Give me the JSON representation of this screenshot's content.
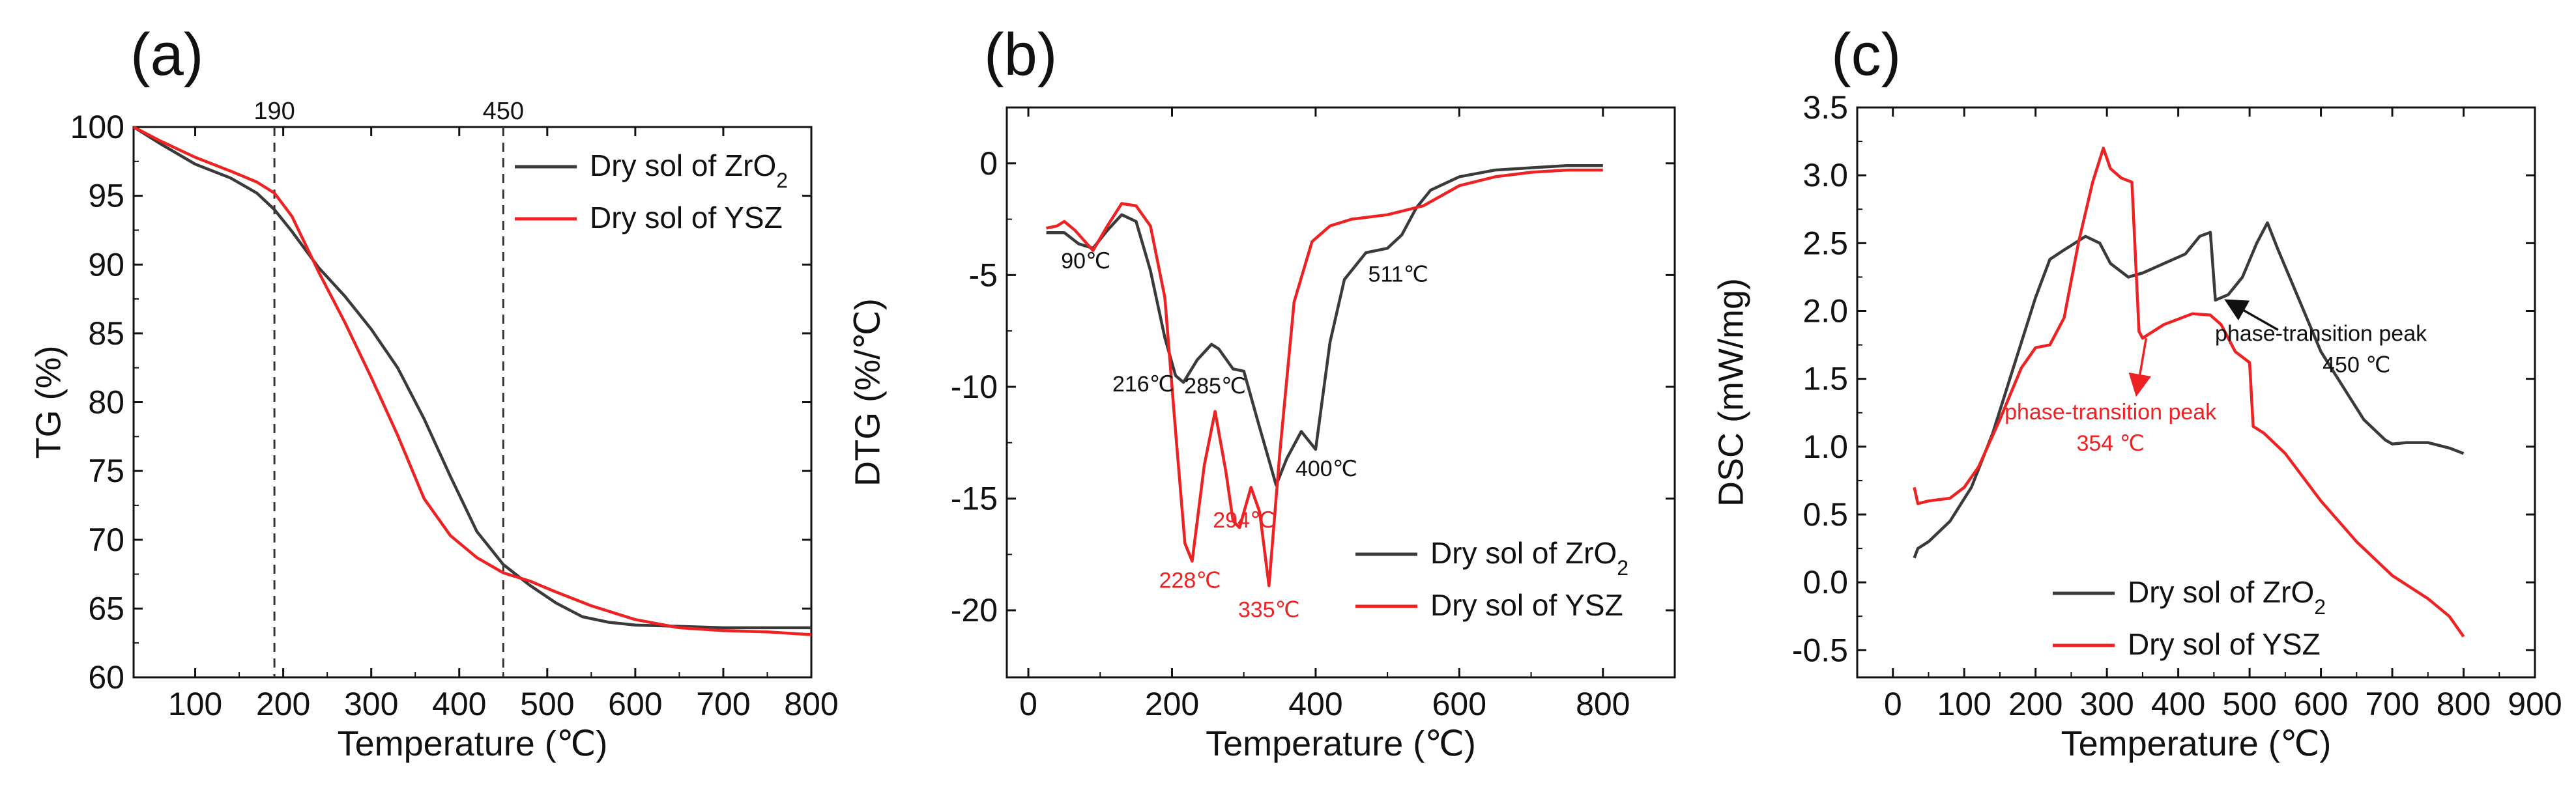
{
  "colors": {
    "zro2": "#3a3a3a",
    "ysz": "#ee2222",
    "axis": "#111111",
    "annot_black": "#111111",
    "annot_red": "#ee2222"
  },
  "chart_data": [
    {
      "type": "line",
      "panel": "(a)",
      "xlabel": "Temperature (℃)",
      "ylabel": "TG (%)",
      "xlim": [
        30,
        800
      ],
      "ylim": [
        60,
        100
      ],
      "xticks": [
        100,
        200,
        300,
        400,
        500,
        600,
        700,
        800
      ],
      "yticks": [
        60,
        65,
        70,
        75,
        80,
        85,
        90,
        95,
        100
      ],
      "legend": [
        "Dry sol of ZrO₂",
        "Dry sol of YSZ"
      ],
      "legend_position": "top-right",
      "vlines": [
        {
          "x": 190,
          "label": "190"
        },
        {
          "x": 450,
          "label": "450"
        }
      ],
      "series": [
        {
          "name": "Dry sol of ZrO₂",
          "color_key": "zro2",
          "x": [
            30,
            60,
            100,
            140,
            170,
            190,
            210,
            240,
            270,
            300,
            330,
            360,
            390,
            420,
            450,
            480,
            510,
            540,
            570,
            600,
            650,
            700,
            800
          ],
          "y": [
            100,
            98.8,
            97.3,
            96.3,
            95.2,
            94.0,
            92.4,
            89.8,
            87.7,
            85.3,
            82.5,
            78.8,
            74.6,
            70.6,
            68.2,
            66.7,
            65.4,
            64.4,
            64.0,
            63.8,
            63.7,
            63.6,
            63.6
          ]
        },
        {
          "name": "Dry sol of YSZ",
          "color_key": "ysz",
          "x": [
            30,
            60,
            100,
            140,
            170,
            190,
            210,
            240,
            270,
            300,
            330,
            360,
            390,
            420,
            450,
            480,
            510,
            550,
            600,
            650,
            700,
            750,
            800
          ],
          "y": [
            100,
            99.0,
            97.8,
            96.8,
            96.0,
            95.2,
            93.5,
            89.5,
            85.8,
            81.8,
            77.6,
            73.0,
            70.3,
            68.7,
            67.6,
            67.0,
            66.2,
            65.2,
            64.2,
            63.6,
            63.4,
            63.3,
            63.1
          ]
        }
      ]
    },
    {
      "type": "line",
      "panel": "(b)",
      "xlabel": "Temperature (℃)",
      "ylabel": "DTG (%/℃)",
      "xlim": [
        -30,
        900
      ],
      "ylim": [
        -23,
        2.5
      ],
      "xticks": [
        0,
        200,
        400,
        600,
        800
      ],
      "yticks": [
        -20,
        -15,
        -10,
        -5,
        0
      ],
      "legend": [
        "Dry sol of ZrO₂",
        "Dry sol of YSZ"
      ],
      "legend_position": "bottom-right",
      "annotations": [
        {
          "text": "90℃",
          "x": 80,
          "y": -4.7,
          "color_key": "annot_black"
        },
        {
          "text": "216℃",
          "x": 160,
          "y": -10.2,
          "color_key": "annot_black"
        },
        {
          "text": "285℃",
          "x": 260,
          "y": -10.3,
          "color_key": "annot_black"
        },
        {
          "text": "400℃",
          "x": 415,
          "y": -14.0,
          "color_key": "annot_black"
        },
        {
          "text": "511℃",
          "x": 515,
          "y": -5.3,
          "color_key": "annot_black"
        },
        {
          "text": "228℃",
          "x": 225,
          "y": -19.0,
          "color_key": "annot_red"
        },
        {
          "text": "294℃",
          "x": 300,
          "y": -16.3,
          "color_key": "annot_red"
        },
        {
          "text": "335℃",
          "x": 335,
          "y": -20.3,
          "color_key": "annot_red"
        }
      ],
      "series": [
        {
          "name": "Dry sol of ZrO₂",
          "color_key": "zro2",
          "x": [
            25,
            50,
            70,
            90,
            110,
            130,
            150,
            170,
            190,
            205,
            216,
            235,
            255,
            265,
            285,
            300,
            320,
            345,
            360,
            380,
            400,
            420,
            440,
            470,
            500,
            520,
            540,
            560,
            600,
            650,
            700,
            750,
            800
          ],
          "y": [
            -3.1,
            -3.1,
            -3.6,
            -3.8,
            -3.0,
            -2.3,
            -2.6,
            -4.8,
            -7.8,
            -9.5,
            -9.8,
            -8.8,
            -8.1,
            -8.3,
            -9.2,
            -9.3,
            -11.6,
            -14.4,
            -13.2,
            -12.0,
            -12.8,
            -8.0,
            -5.2,
            -4.0,
            -3.8,
            -3.2,
            -2.0,
            -1.2,
            -0.6,
            -0.3,
            -0.2,
            -0.1,
            -0.1
          ]
        },
        {
          "name": "Dry sol of YSZ",
          "color_key": "ysz",
          "x": [
            25,
            40,
            50,
            65,
            90,
            110,
            130,
            150,
            170,
            190,
            205,
            218,
            228,
            245,
            260,
            275,
            285,
            294,
            310,
            322,
            335,
            350,
            370,
            395,
            420,
            450,
            500,
            550,
            600,
            650,
            700,
            750,
            800
          ],
          "y": [
            -2.9,
            -2.8,
            -2.6,
            -3.0,
            -3.9,
            -2.8,
            -1.8,
            -1.9,
            -2.8,
            -6.0,
            -12.0,
            -17.0,
            -17.8,
            -13.5,
            -11.1,
            -13.8,
            -16.0,
            -16.3,
            -14.5,
            -15.6,
            -18.9,
            -13.0,
            -6.2,
            -3.5,
            -2.8,
            -2.5,
            -2.3,
            -1.9,
            -1.0,
            -0.6,
            -0.4,
            -0.3,
            -0.3
          ]
        }
      ]
    },
    {
      "type": "line",
      "panel": "(c)",
      "xlabel": "Temperature (℃)",
      "ylabel": "DSC (mW/mg)",
      "xlim": [
        -50,
        900
      ],
      "ylim": [
        -0.7,
        3.5
      ],
      "xticks": [
        0,
        100,
        200,
        300,
        400,
        500,
        600,
        700,
        800,
        900
      ],
      "yticks": [
        -0.5,
        0.0,
        0.5,
        1.0,
        1.5,
        2.0,
        2.5,
        3.0,
        3.5
      ],
      "legend": [
        "Dry sol of ZrO₂",
        "Dry sol of YSZ"
      ],
      "legend_position": "bottom-left",
      "annotations": [
        {
          "text": "phase-transition peak",
          "x": 600,
          "y": 1.78,
          "color_key": "annot_black",
          "anchor": "middle"
        },
        {
          "text": "450 ℃",
          "x": 650,
          "y": 1.55,
          "color_key": "annot_black",
          "anchor": "middle"
        },
        {
          "text": "phase-transition peak",
          "x": 305,
          "y": 1.2,
          "color_key": "annot_red",
          "anchor": "middle"
        },
        {
          "text": "354 ℃",
          "x": 305,
          "y": 0.97,
          "color_key": "annot_red",
          "anchor": "middle"
        }
      ],
      "arrows": [
        {
          "from": [
            540,
            1.86
          ],
          "to": [
            470,
            2.07
          ],
          "color_key": "annot_black"
        },
        {
          "from": [
            355,
            1.8
          ],
          "to": [
            342,
            1.4
          ],
          "color_key": "annot_red"
        }
      ],
      "series": [
        {
          "name": "Dry sol of ZrO₂",
          "color_key": "zro2",
          "x": [
            30,
            35,
            50,
            80,
            110,
            140,
            170,
            200,
            220,
            240,
            270,
            290,
            305,
            330,
            350,
            380,
            410,
            430,
            445,
            452,
            470,
            490,
            510,
            525,
            540,
            560,
            580,
            600,
            630,
            660,
            690,
            700,
            720,
            750,
            780,
            800
          ],
          "y": [
            0.18,
            0.25,
            0.3,
            0.45,
            0.7,
            1.1,
            1.6,
            2.1,
            2.38,
            2.45,
            2.55,
            2.5,
            2.35,
            2.25,
            2.28,
            2.35,
            2.42,
            2.55,
            2.58,
            2.08,
            2.12,
            2.25,
            2.5,
            2.65,
            2.45,
            2.2,
            1.95,
            1.7,
            1.45,
            1.2,
            1.05,
            1.02,
            1.03,
            1.03,
            0.99,
            0.95
          ]
        },
        {
          "name": "Dry sol of YSZ",
          "color_key": "ysz",
          "x": [
            30,
            35,
            50,
            80,
            100,
            120,
            150,
            180,
            200,
            220,
            240,
            260,
            280,
            295,
            305,
            320,
            335,
            345,
            350,
            380,
            420,
            445,
            460,
            480,
            500,
            505,
            520,
            550,
            600,
            650,
            700,
            750,
            780,
            800
          ],
          "y": [
            0.7,
            0.58,
            0.6,
            0.62,
            0.7,
            0.85,
            1.2,
            1.58,
            1.73,
            1.75,
            1.95,
            2.5,
            2.95,
            3.2,
            3.05,
            2.98,
            2.95,
            1.85,
            1.8,
            1.9,
            1.98,
            1.97,
            1.9,
            1.7,
            1.62,
            1.15,
            1.1,
            0.95,
            0.6,
            0.3,
            0.05,
            -0.12,
            -0.25,
            -0.4
          ]
        }
      ]
    }
  ]
}
